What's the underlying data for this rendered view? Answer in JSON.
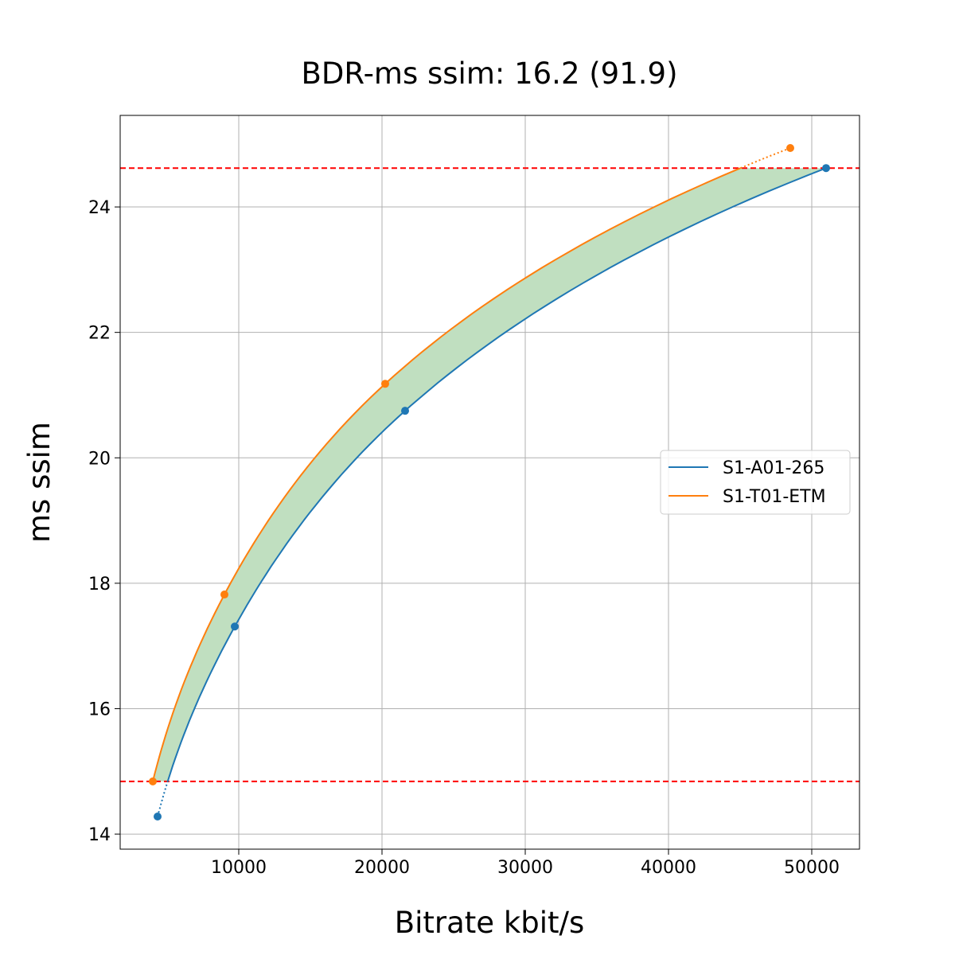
{
  "chart_data": {
    "type": "line",
    "title": "BDR-ms ssim: 16.2 (91.9)",
    "xlabel": "Bitrate kbit/s",
    "ylabel": "ms ssim",
    "xlim": [
      1722,
      53333
    ],
    "ylim": [
      13.76,
      25.46
    ],
    "xticks": [
      10000,
      20000,
      30000,
      40000,
      50000
    ],
    "yticks": [
      14,
      16,
      18,
      20,
      22,
      24
    ],
    "grid": true,
    "legend_position": "right",
    "series": [
      {
        "name": "S1-A01-265",
        "color": "#1f77b4",
        "x": [
          4333,
          9722,
          21611,
          51000
        ],
        "y": [
          14.28,
          17.31,
          20.75,
          24.62
        ]
      },
      {
        "name": "S1-T01-ETM",
        "color": "#ff7f0e",
        "x": [
          4000,
          9000,
          20222,
          48500
        ],
        "y": [
          14.84,
          17.82,
          21.18,
          24.94
        ]
      }
    ],
    "reference_lines": {
      "color": "#ff0000",
      "style": "dashed",
      "y": [
        24.62,
        14.84
      ]
    },
    "fill_between": {
      "color": "#c0dfc0",
      "y_range": [
        14.84,
        24.62
      ]
    }
  }
}
